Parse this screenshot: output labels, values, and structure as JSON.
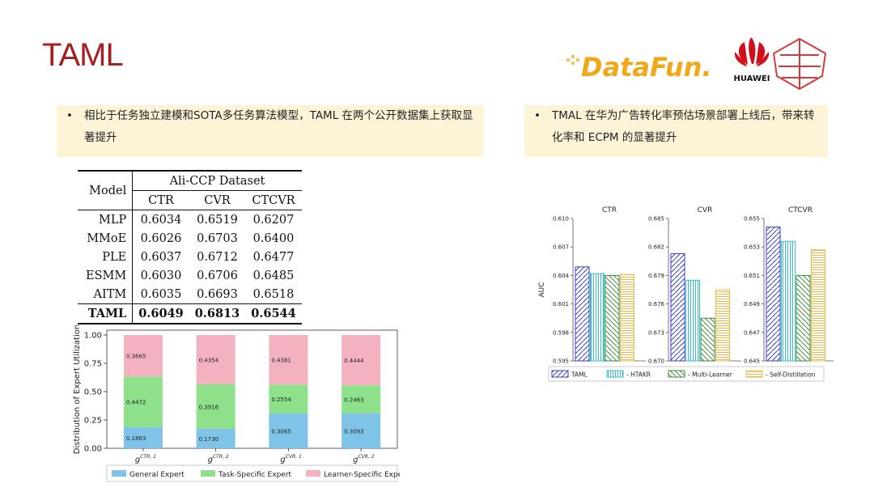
{
  "slide": {
    "title": "TAML"
  },
  "logos": {
    "datafun": "DataFun.",
    "huawei": "HUAWEI"
  },
  "bullets": {
    "left": "相比于任务独立建模和SOTA多任务算法模型，TAML 在两个公开数据集上获取显著提升",
    "right": "TMAL 在华为广告转化率预估场景部署上线后，带来转化率和 ECPM 的显著提升"
  },
  "colors": {
    "title": "#a51e22",
    "highlight_box": "#fdf3d6",
    "general_expert": "#7fc3e8",
    "task_expert": "#8fe08a",
    "learner_expert": "#f4b2c0",
    "taml": "#3b3fc6",
    "htakr": "#35c0c8",
    "multi_learner": "#3e8a3a",
    "self_distillation": "#e8b84a"
  },
  "table": {
    "header_model": "Model",
    "header_dataset": "Ali-CCP Dataset",
    "columns": [
      "CTR",
      "CVR",
      "CTCVR"
    ],
    "rows": [
      {
        "model": "MLP",
        "ctr": "0.6034",
        "cvr": "0.6519",
        "ctcvr": "0.6207"
      },
      {
        "model": "MMoE",
        "ctr": "0.6026",
        "cvr": "0.6703",
        "ctcvr": "0.6400"
      },
      {
        "model": "PLE",
        "ctr": "0.6037",
        "cvr": "0.6712",
        "ctcvr": "0.6477"
      },
      {
        "model": "ESMM",
        "ctr": "0.6030",
        "cvr": "0.6706",
        "ctcvr": "0.6485"
      },
      {
        "model": "AITM",
        "ctr": "0.6035",
        "cvr": "0.6693",
        "ctcvr": "0.6518"
      }
    ],
    "best": {
      "model": "TAML",
      "ctr": "0.6049",
      "cvr": "0.6813",
      "ctcvr": "0.6544"
    }
  },
  "chart_data": [
    {
      "type": "bar",
      "stacked": true,
      "ylabel": "Distribution of Expert Utilization",
      "ylim": [
        0,
        1.0
      ],
      "yticks": [
        "0.00",
        "0.25",
        "0.50",
        "0.75",
        "1.00"
      ],
      "categories": [
        [
          "g",
          "CTR, 1"
        ],
        [
          "g",
          "CTR, 2"
        ],
        [
          "g",
          "CVR, 1"
        ],
        [
          "g",
          "CVR, 2"
        ]
      ],
      "series": [
        {
          "name": "General Expert",
          "color": "#7fc3e8",
          "values": [
            0.1863,
            0.173,
            0.3065,
            0.3093
          ],
          "labels": [
            "0.1863",
            "0.1730",
            "0.3065",
            "0.3093"
          ]
        },
        {
          "name": "Task-Specific Expert",
          "color": "#8fe08a",
          "values": [
            0.4472,
            0.3916,
            0.2554,
            0.2463
          ],
          "labels": [
            "0.4472",
            "0.3916",
            "0.2554",
            "0.2463"
          ]
        },
        {
          "name": "Learner-Specific Expert",
          "color": "#f4b2c0",
          "values": [
            0.3665,
            0.4354,
            0.4381,
            0.4444
          ],
          "labels": [
            "0.3665",
            "0.4354",
            "0.4381",
            "0.4444"
          ]
        }
      ],
      "legend": "bottom",
      "grid": false
    },
    {
      "type": "bar",
      "ylabel": "AUC",
      "legend": "bottom",
      "grid": false,
      "legend_names": [
        "TAML",
        "- HTAKR",
        "- Multi-Learner",
        "- Self-Distillation"
      ],
      "panels": [
        {
          "title": "CTR",
          "ylim": [
            0.595,
            0.61
          ],
          "yticks": [
            "0.595",
            "0.598",
            "0.601",
            "0.604",
            "0.607",
            "0.610"
          ],
          "values": [
            0.6049,
            0.6042,
            0.604,
            0.6041
          ]
        },
        {
          "title": "CVR",
          "ylim": [
            0.67,
            0.685
          ],
          "yticks": [
            "0.670",
            "0.673",
            "0.676",
            "0.679",
            "0.682",
            "0.685"
          ],
          "values": [
            0.6813,
            0.6785,
            0.6745,
            0.6775
          ]
        },
        {
          "title": "CTCVR",
          "ylim": [
            0.645,
            0.655
          ],
          "yticks": [
            "0.645",
            "0.647",
            "0.649",
            "0.651",
            "0.653",
            "0.655"
          ],
          "values": [
            0.6544,
            0.6534,
            0.651,
            0.6528
          ]
        }
      ]
    }
  ]
}
